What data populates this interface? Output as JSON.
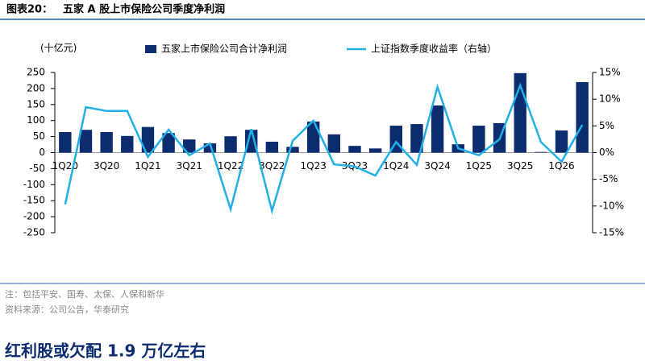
{
  "header": {
    "label": "图表20：",
    "title": "五家 A 股上市保险公司季度净利润"
  },
  "chart_data": {
    "type": "bar_line",
    "y_label": "(十亿元)",
    "categories": [
      "1Q20",
      null,
      "3Q20",
      null,
      "1Q21",
      null,
      "3Q21",
      null,
      "1Q22",
      null,
      "3Q22",
      null,
      "1Q23",
      null,
      "3Q23",
      null,
      "1Q24",
      null,
      "3Q24",
      null,
      "1Q25",
      null,
      "3Q25",
      null,
      "1Q26",
      null
    ],
    "series": [
      {
        "name": "五家上市保险公司合计净利润",
        "type": "bar",
        "color": "#0b2c6f",
        "values": [
          64,
          71,
          64,
          52,
          80,
          61,
          41,
          29,
          51,
          71,
          34,
          18,
          97,
          57,
          21,
          13,
          84,
          89,
          147,
          26,
          84,
          92,
          248,
          2,
          69,
          220
        ]
      },
      {
        "name": "上证指数季度收益率（右轴）",
        "type": "line",
        "axis": "y2",
        "color": "#1fb0e6",
        "values": [
          -9.7,
          8.5,
          7.8,
          7.8,
          -0.8,
          4.3,
          -0.5,
          1.7,
          -10.6,
          4.4,
          -10.9,
          2.2,
          6.0,
          -2.2,
          -2.6,
          -4.3,
          2.0,
          -2.3,
          12.3,
          0.8,
          -0.5,
          2.5,
          12.6,
          2.0,
          -1.7,
          5.2
        ]
      }
    ],
    "ylim": [
      -250,
      250
    ],
    "yticks": [
      250,
      200,
      150,
      100,
      50,
      0,
      -50,
      -100,
      -150,
      -200,
      -250
    ],
    "y2lim": [
      -15,
      15
    ],
    "y2ticks": [
      {
        "value": 15,
        "label": "15%"
      },
      {
        "value": 10,
        "label": "10%"
      },
      {
        "value": 5,
        "label": "5%"
      },
      {
        "value": 0,
        "label": "0%"
      },
      {
        "value": -5,
        "label": "-5%"
      },
      {
        "value": -10,
        "label": "-10%"
      },
      {
        "value": -15,
        "label": "-15%"
      }
    ]
  },
  "note": "注：包括平安、国寿、太保、人保和新华",
  "source": "资料来源：公司公告，华泰研究",
  "heading": "红利股或欠配 1.9 万亿左右"
}
